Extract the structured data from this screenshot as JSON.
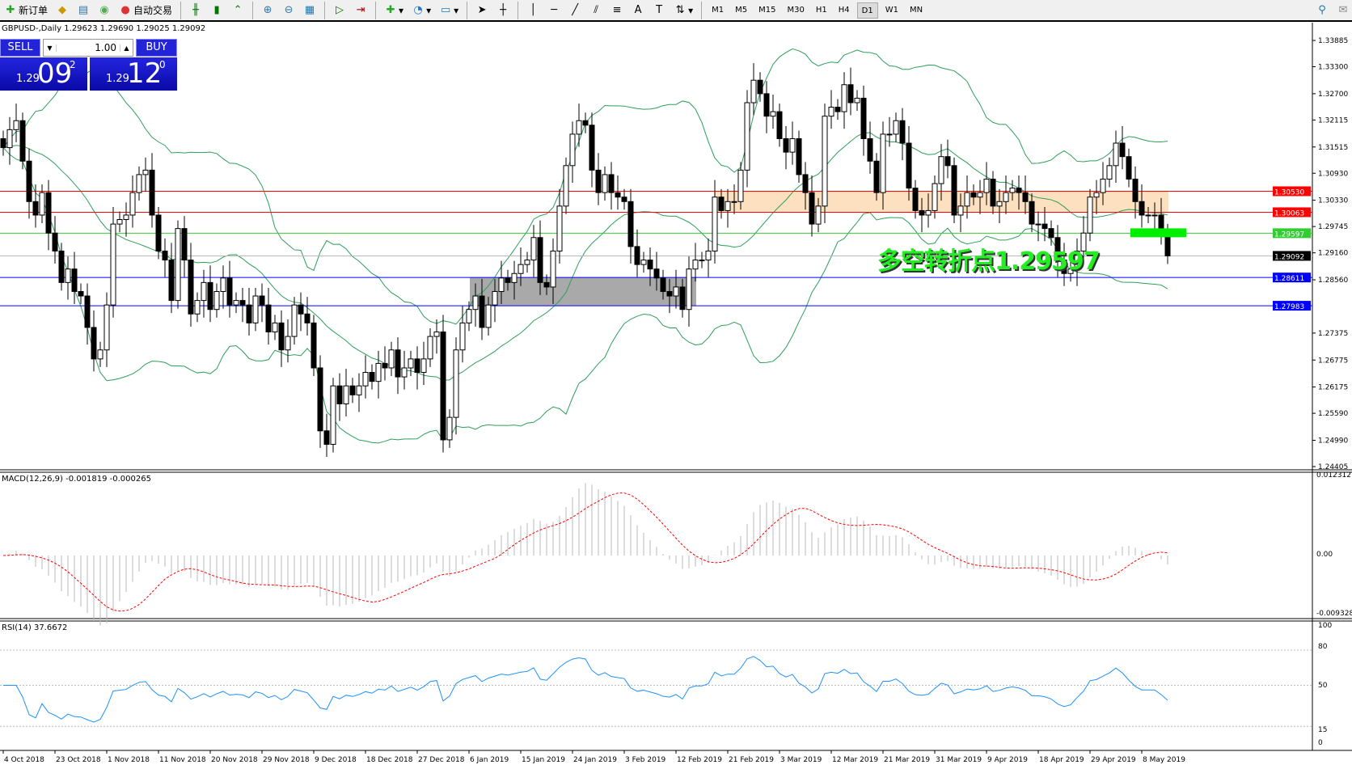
{
  "toolbar": {
    "new_order": "新订单",
    "auto_trading": "自动交易",
    "timeframes": [
      "M1",
      "M5",
      "M15",
      "M30",
      "H1",
      "H4",
      "D1",
      "W1",
      "MN"
    ],
    "active_timeframe": "D1"
  },
  "header": {
    "title": "GBPUSD-,Daily  1.29623 1.29690 1.29025 1.29092"
  },
  "trade_panel": {
    "sell": "SELL",
    "buy": "BUY",
    "lot": "1.00",
    "sell_small": "1.29",
    "sell_big": "09",
    "sell_pip": "2",
    "buy_small": "1.29",
    "buy_big": "12",
    "buy_pip": "0"
  },
  "annotation": {
    "text": "多空转折点1.29597",
    "color": "#22ee22"
  },
  "macd": {
    "label": "MACD(12,26,9) -0.001819 -0.000265",
    "ticks": [
      "0.012312",
      "0.00",
      "-0.009328"
    ]
  },
  "rsi": {
    "label": "RSI(14) 37.6672",
    "ticks": [
      "100",
      "80",
      "50",
      "15",
      "0"
    ]
  },
  "chart_data": {
    "type": "candlestick",
    "symbol": "GBPUSD",
    "timeframe": "Daily",
    "ylim": [
      1.24405,
      1.33885
    ],
    "price_ticks": [
      "1.33885",
      "1.33300",
      "1.32700",
      "1.32115",
      "1.31515",
      "1.30930",
      "1.30330",
      "1.29745",
      "1.29160",
      "1.28560",
      "1.27375",
      "1.26775",
      "1.26175",
      "1.25590",
      "1.24990",
      "1.24405"
    ],
    "date_labels": [
      "4 Oct 2018",
      "23 Oct 2018",
      "1 Nov 2018",
      "11 Nov 2018",
      "20 Nov 2018",
      "29 Nov 2018",
      "9 Dec 2018",
      "18 Dec 2018",
      "27 Dec 2018",
      "6 Jan 2019",
      "15 Jan 2019",
      "24 Jan 2019",
      "3 Feb 2019",
      "12 Feb 2019",
      "21 Feb 2019",
      "3 Mar 2019",
      "12 Mar 2019",
      "21 Mar 2019",
      "31 Mar 2019",
      "9 Apr 2019",
      "18 Apr 2019",
      "29 Apr 2019",
      "8 May 2019"
    ],
    "closes": [
      1.315,
      1.319,
      1.321,
      1.312,
      1.303,
      1.3,
      1.305,
      1.296,
      1.292,
      1.285,
      1.288,
      1.283,
      1.282,
      1.275,
      1.268,
      1.27,
      1.28,
      1.298,
      1.299,
      1.3,
      1.305,
      1.309,
      1.31,
      1.3,
      1.292,
      1.29,
      1.281,
      1.297,
      1.29,
      1.278,
      1.281,
      1.285,
      1.279,
      1.283,
      1.286,
      1.28,
      1.281,
      1.28,
      1.276,
      1.282,
      1.28,
      1.274,
      1.276,
      1.27,
      1.273,
      1.28,
      1.278,
      1.276,
      1.266,
      1.252,
      1.249,
      1.262,
      1.258,
      1.262,
      1.26,
      1.262,
      1.265,
      1.263,
      1.267,
      1.266,
      1.27,
      1.264,
      1.266,
      1.268,
      1.265,
      1.268,
      1.273,
      1.274,
      1.25,
      1.255,
      1.27,
      1.276,
      1.279,
      1.282,
      1.275,
      1.28,
      1.283,
      1.286,
      1.285,
      1.287,
      1.289,
      1.29,
      1.295,
      1.285,
      1.284,
      1.292,
      1.302,
      1.311,
      1.318,
      1.321,
      1.32,
      1.31,
      1.305,
      1.309,
      1.305,
      1.304,
      1.303,
      1.293,
      1.289,
      1.29,
      1.288,
      1.286,
      1.283,
      1.282,
      1.284,
      1.279,
      1.288,
      1.29,
      1.29,
      1.292,
      1.304,
      1.301,
      1.303,
      1.303,
      1.31,
      1.325,
      1.33,
      1.327,
      1.322,
      1.323,
      1.317,
      1.314,
      1.317,
      1.309,
      1.305,
      1.298,
      1.302,
      1.322,
      1.324,
      1.323,
      1.329,
      1.325,
      1.326,
      1.317,
      1.312,
      1.305,
      1.318,
      1.318,
      1.321,
      1.316,
      1.306,
      1.301,
      1.3,
      1.301,
      1.307,
      1.313,
      1.311,
      1.3,
      1.302,
      1.305,
      1.304,
      1.305,
      1.308,
      1.302,
      1.303,
      1.305,
      1.306,
      1.305,
      1.303,
      1.298,
      1.298,
      1.297,
      1.295,
      1.29,
      1.287,
      1.288,
      1.292,
      1.296,
      1.304,
      1.305,
      1.308,
      1.311,
      1.316,
      1.313,
      1.308,
      1.303,
      1.3,
      1.3,
      1.3,
      1.29623,
      1.29092
    ],
    "levels": [
      {
        "price": "1.30530",
        "color": "#ff0000"
      },
      {
        "price": "1.30063",
        "color": "#ff0000"
      },
      {
        "price": "1.29597",
        "color": "#33cc33"
      },
      {
        "price": "1.29092",
        "color": "#000000"
      },
      {
        "price": "1.28611",
        "color": "#0000ff"
      },
      {
        "price": "1.27983",
        "color": "#0000ff"
      }
    ],
    "zones": [
      {
        "from": 1.30063,
        "to": 1.3053,
        "color": "#fde0c0"
      },
      {
        "from": 1.27983,
        "to": 1.28611,
        "color": "#a9a9a9"
      }
    ],
    "indicators": [
      "Bollinger Bands",
      "MACD(12,26,9)",
      "RSI(14)"
    ]
  }
}
